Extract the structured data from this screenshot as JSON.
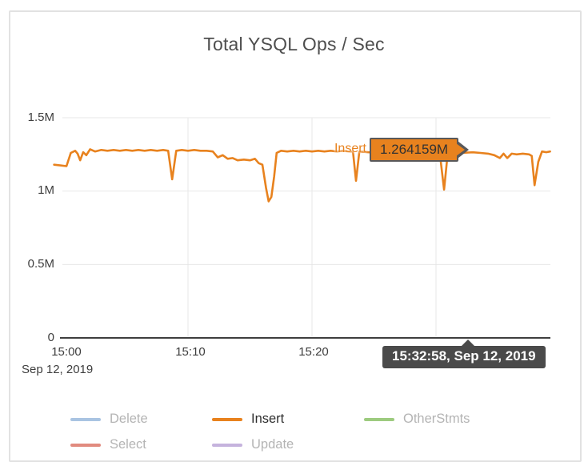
{
  "card": {
    "title": "Total YSQL Ops / Sec"
  },
  "colors": {
    "insert_line": "#e8821e",
    "value_box_bg": "#e8821e",
    "value_box_border": "#58585a",
    "time_tooltip_bg": "#4a4a4a",
    "gridline": "#e7e7e7",
    "axis_line": "#3f3f3f",
    "delete_swatch": "#a9c4e2",
    "select_swatch": "#e18b7f",
    "update_swatch": "#c5b3dd",
    "otherstmts_swatch": "#9dcb7f"
  },
  "hover": {
    "series": "Insert",
    "value_label": "1.264159M",
    "value": 1.264159,
    "time_label": "15:32:58, Sep 12, 2019"
  },
  "legend": {
    "items": [
      {
        "label": "Delete",
        "color": "#a9c4e2",
        "emphasized": false
      },
      {
        "label": "Insert",
        "color": "#e8821e",
        "emphasized": true
      },
      {
        "label": "OtherStmts",
        "color": "#9dcb7f",
        "emphasized": false
      },
      {
        "label": "Select",
        "color": "#e18b7f",
        "emphasized": false
      },
      {
        "label": "Update",
        "color": "#c5b3dd",
        "emphasized": false
      }
    ]
  },
  "chart_data": {
    "type": "line",
    "title": "Total YSQL Ops / Sec",
    "ylabel": "Ops / Sec",
    "ylim": [
      0,
      1500000
    ],
    "grid": true,
    "legend_position": "bottom",
    "y_axis": {
      "ticks": [
        "1.5M",
        "1M",
        "0.5M",
        "0"
      ],
      "tick_values": [
        1500000,
        1000000,
        500000,
        0
      ]
    },
    "x_axis": {
      "date_label": "Sep 12, 2019",
      "ticks": [
        "15:00",
        "15:10",
        "15:20"
      ],
      "tick_minutes": [
        0,
        10,
        20
      ],
      "unlabeled_gridline_minutes": [
        30
      ],
      "range_minutes": [
        -0.8,
        39.2
      ]
    },
    "series": [
      {
        "name": "Insert",
        "color": "#e8821e",
        "units": "M ops/sec",
        "x_unit": "minutes after 15:00",
        "points": [
          [
            -0.8,
            1.18
          ],
          [
            -0.3,
            1.175
          ],
          [
            0.2,
            1.17
          ],
          [
            0.55,
            1.26
          ],
          [
            0.9,
            1.275
          ],
          [
            1.1,
            1.255
          ],
          [
            1.3,
            1.21
          ],
          [
            1.55,
            1.265
          ],
          [
            1.8,
            1.245
          ],
          [
            2.1,
            1.285
          ],
          [
            2.5,
            1.27
          ],
          [
            3.0,
            1.28
          ],
          [
            3.5,
            1.275
          ],
          [
            4.0,
            1.28
          ],
          [
            4.5,
            1.275
          ],
          [
            5.0,
            1.28
          ],
          [
            5.5,
            1.275
          ],
          [
            6.0,
            1.28
          ],
          [
            6.5,
            1.275
          ],
          [
            7.0,
            1.28
          ],
          [
            7.5,
            1.275
          ],
          [
            8.0,
            1.28
          ],
          [
            8.4,
            1.275
          ],
          [
            8.72,
            1.08
          ],
          [
            9.05,
            1.275
          ],
          [
            9.5,
            1.28
          ],
          [
            10.0,
            1.275
          ],
          [
            10.5,
            1.28
          ],
          [
            11.0,
            1.275
          ],
          [
            11.5,
            1.275
          ],
          [
            12.0,
            1.27
          ],
          [
            12.4,
            1.23
          ],
          [
            12.8,
            1.245
          ],
          [
            13.2,
            1.22
          ],
          [
            13.6,
            1.225
          ],
          [
            14.0,
            1.21
          ],
          [
            14.5,
            1.215
          ],
          [
            15.0,
            1.21
          ],
          [
            15.4,
            1.22
          ],
          [
            15.7,
            1.19
          ],
          [
            16.0,
            1.18
          ],
          [
            16.3,
            1.02
          ],
          [
            16.5,
            0.93
          ],
          [
            16.72,
            0.96
          ],
          [
            16.95,
            1.1
          ],
          [
            17.15,
            1.26
          ],
          [
            17.5,
            1.275
          ],
          [
            18.0,
            1.27
          ],
          [
            18.5,
            1.275
          ],
          [
            19.0,
            1.27
          ],
          [
            19.5,
            1.275
          ],
          [
            20.0,
            1.27
          ],
          [
            20.5,
            1.275
          ],
          [
            21.0,
            1.27
          ],
          [
            21.5,
            1.275
          ],
          [
            22.0,
            1.27
          ],
          [
            22.5,
            1.275
          ],
          [
            23.0,
            1.27
          ],
          [
            23.3,
            1.27
          ],
          [
            23.55,
            1.07
          ],
          [
            23.82,
            1.27
          ],
          [
            24.5,
            1.265
          ],
          [
            25.5,
            1.26
          ],
          [
            26.5,
            1.26
          ],
          [
            27.5,
            1.26
          ],
          [
            28.5,
            1.26
          ],
          [
            29.5,
            1.26
          ],
          [
            30.3,
            1.26
          ],
          [
            30.65,
            1.01
          ],
          [
            30.95,
            1.26
          ],
          [
            31.5,
            1.265
          ],
          [
            32.0,
            1.26
          ],
          [
            32.97,
            1.264159
          ],
          [
            33.6,
            1.26
          ],
          [
            34.2,
            1.255
          ],
          [
            34.7,
            1.245
          ],
          [
            35.15,
            1.225
          ],
          [
            35.45,
            1.255
          ],
          [
            35.75,
            1.225
          ],
          [
            36.1,
            1.255
          ],
          [
            36.5,
            1.25
          ],
          [
            37.0,
            1.255
          ],
          [
            37.5,
            1.25
          ],
          [
            37.72,
            1.24
          ],
          [
            37.95,
            1.04
          ],
          [
            38.25,
            1.2
          ],
          [
            38.55,
            1.27
          ],
          [
            38.9,
            1.265
          ],
          [
            39.2,
            1.27
          ]
        ]
      },
      {
        "name": "Delete",
        "points": []
      },
      {
        "name": "Select",
        "points": []
      },
      {
        "name": "Update",
        "points": []
      },
      {
        "name": "OtherStmts",
        "points": []
      }
    ],
    "hover_point": {
      "series": "Insert",
      "minutes_after_1500": 32.97,
      "value_M": 1.264159
    }
  }
}
